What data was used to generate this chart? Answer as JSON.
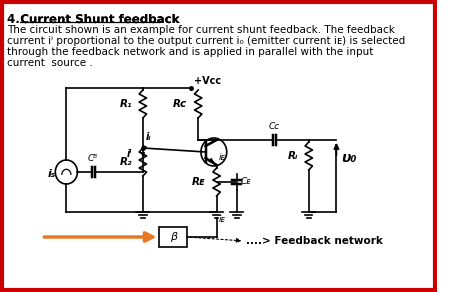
{
  "title_num": "4. ",
  "title_underlined": "Current Shunt feedback",
  "title_colon": ":",
  "body_lines": [
    "The circuit shown is an example for current shunt feedback. The feedback",
    "current iⁱ proportional to the output current i₀ (emitter current iᴇ) is selected",
    "through the feedback network and is applied in parallel with the input",
    "current  source ."
  ],
  "feedback_label": "....> Feedback network",
  "bg_color": "#ffffff",
  "border_color": "#cc0000",
  "arrow_color": "#e87722",
  "text_color": "#000000",
  "vcc_label": "+Vcc",
  "lbl_R1": "R₁",
  "lbl_R2": "R₂",
  "lbl_RC": "Rᴄ",
  "lbl_RE": "Rᴇ",
  "lbl_RL": "Rₗ",
  "lbl_CB": "Cᴮ",
  "lbl_CC": "Cᴄ",
  "lbl_CE": "Cᴇ",
  "lbl_is": "iₛ",
  "lbl_ii": "iᵢ",
  "lbl_if": "iⁱ",
  "lbl_iE": "iᴇ",
  "lbl_Vo": "υ₀",
  "lbl_beta": "β"
}
